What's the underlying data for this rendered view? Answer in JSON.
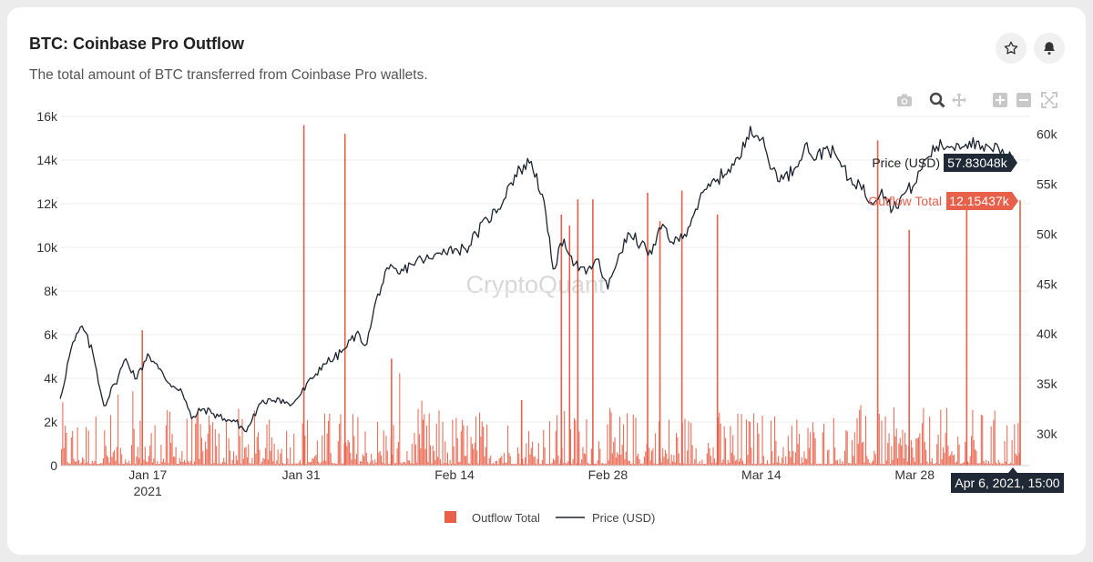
{
  "header": {
    "title": "BTC: Coinbase Pro Outflow",
    "subtitle": "The total amount of BTC transferred from Coinbase Pro wallets."
  },
  "icons": {
    "favorite": "star-icon",
    "alert": "bell-icon",
    "modebar": [
      "camera-icon",
      "zoom-icon",
      "pan-icon",
      "zoom-in-icon",
      "zoom-out-icon",
      "autoscale-icon"
    ]
  },
  "watermark": "CryptoQuant",
  "hover": {
    "price_label": "Price (USD)",
    "price_value": "57.83048k",
    "outflow_label": "Outflow Total",
    "outflow_value": "12.15437k",
    "date": "Apr 6, 2021, 15:00"
  },
  "colors": {
    "outflow": "#e8604a",
    "price": "#1c2430",
    "hover_dark": "#1f2a36",
    "hover_red": "#e8604a"
  },
  "chart_data": {
    "type": "bar",
    "x_range": [
      "2021-01-09",
      "2021-04-06"
    ],
    "x_ticks": [
      {
        "date": "2021-01-17",
        "label": "Jan 17",
        "sublabel": "2021"
      },
      {
        "date": "2021-01-31",
        "label": "Jan 31"
      },
      {
        "date": "2021-02-14",
        "label": "Feb 14"
      },
      {
        "date": "2021-02-28",
        "label": "Feb 28"
      },
      {
        "date": "2021-03-14",
        "label": "Mar 14"
      },
      {
        "date": "2021-03-28",
        "label": "Mar 28"
      }
    ],
    "y_left": {
      "range": [
        0,
        16000
      ],
      "ticks": [
        0,
        2000,
        4000,
        6000,
        8000,
        10000,
        12000,
        14000,
        16000
      ],
      "tick_labels": [
        "0",
        "2k",
        "4k",
        "6k",
        "8k",
        "10k",
        "12k",
        "14k",
        "16k"
      ]
    },
    "y_right": {
      "range": [
        26800,
        61800
      ],
      "ticks": [
        30000,
        35000,
        40000,
        45000,
        50000,
        55000,
        60000
      ],
      "tick_labels": [
        "30k",
        "35k",
        "40k",
        "45k",
        "50k",
        "55k",
        "60k"
      ]
    },
    "grid": true,
    "legend_position": "bottom",
    "series": [
      {
        "name": "Outflow Total",
        "type": "bar",
        "spikes": [
          {
            "x": "2021-01-16 12:00",
            "y": 6200
          },
          {
            "x": "2021-01-31 06:00",
            "y": 15600
          },
          {
            "x": "2021-02-04 00:00",
            "y": 15200
          },
          {
            "x": "2021-02-08 06:00",
            "y": 4900
          },
          {
            "x": "2021-02-20 03:00",
            "y": 3000
          },
          {
            "x": "2021-02-23 18:00",
            "y": 11500
          },
          {
            "x": "2021-02-24 12:00",
            "y": 11000
          },
          {
            "x": "2021-02-25 06:00",
            "y": 12200
          },
          {
            "x": "2021-02-26 15:00",
            "y": 12200
          },
          {
            "x": "2021-03-03 15:00",
            "y": 12500
          },
          {
            "x": "2021-03-04 18:00",
            "y": 11200
          },
          {
            "x": "2021-03-06 18:00",
            "y": 12600
          },
          {
            "x": "2021-03-10 00:00",
            "y": 11500
          },
          {
            "x": "2021-03-24 15:00",
            "y": 14900
          },
          {
            "x": "2021-03-27 12:00",
            "y": 10800
          },
          {
            "x": "2021-04-01 18:00",
            "y": 12100
          },
          {
            "x": "2021-04-06 15:00",
            "y": 12154
          }
        ]
      },
      {
        "name": "Price (USD)",
        "type": "line",
        "points": [
          [
            "2021-01-09",
            33500
          ],
          [
            "2021-01-10",
            38500
          ],
          [
            "2021-01-11",
            40800
          ],
          [
            "2021-01-12",
            38000
          ],
          [
            "2021-01-13",
            32800
          ],
          [
            "2021-01-14",
            35000
          ],
          [
            "2021-01-15",
            37500
          ],
          [
            "2021-01-16",
            35500
          ],
          [
            "2021-01-17",
            38000
          ],
          [
            "2021-01-18",
            36500
          ],
          [
            "2021-01-19",
            35000
          ],
          [
            "2021-01-20",
            34500
          ],
          [
            "2021-01-21",
            31500
          ],
          [
            "2021-01-22",
            32500
          ],
          [
            "2021-01-23",
            32000
          ],
          [
            "2021-01-24",
            31500
          ],
          [
            "2021-01-25",
            31200
          ],
          [
            "2021-01-26",
            30200
          ],
          [
            "2021-01-27",
            32500
          ],
          [
            "2021-01-28",
            33500
          ],
          [
            "2021-01-29",
            33500
          ],
          [
            "2021-01-30",
            32800
          ],
          [
            "2021-01-31",
            34000
          ],
          [
            "2021-02-01",
            35500
          ],
          [
            "2021-02-02",
            37000
          ],
          [
            "2021-02-03",
            37500
          ],
          [
            "2021-02-04",
            38500
          ],
          [
            "2021-02-05",
            40000
          ],
          [
            "2021-02-06",
            39000
          ],
          [
            "2021-02-07",
            44000
          ],
          [
            "2021-02-08",
            46500
          ],
          [
            "2021-02-09",
            46000
          ],
          [
            "2021-02-10",
            47000
          ],
          [
            "2021-02-11",
            47500
          ],
          [
            "2021-02-12",
            47500
          ],
          [
            "2021-02-13",
            48500
          ],
          [
            "2021-02-14",
            48500
          ],
          [
            "2021-02-15",
            48500
          ],
          [
            "2021-02-16",
            50000
          ],
          [
            "2021-02-17",
            51500
          ],
          [
            "2021-02-18",
            52500
          ],
          [
            "2021-02-19",
            55000
          ],
          [
            "2021-02-20",
            56500
          ],
          [
            "2021-02-21",
            57300
          ],
          [
            "2021-02-22",
            54000
          ],
          [
            "2021-02-23",
            46500
          ],
          [
            "2021-02-24",
            49500
          ],
          [
            "2021-02-25",
            47000
          ],
          [
            "2021-02-26",
            46000
          ],
          [
            "2021-02-27",
            47500
          ],
          [
            "2021-02-28",
            44500
          ],
          [
            "2021-03-01",
            48000
          ],
          [
            "2021-03-02",
            50000
          ],
          [
            "2021-03-03",
            49000
          ],
          [
            "2021-03-04",
            48000
          ],
          [
            "2021-03-05",
            51000
          ],
          [
            "2021-03-06",
            49000
          ],
          [
            "2021-03-07",
            50000
          ],
          [
            "2021-03-08",
            52500
          ],
          [
            "2021-03-09",
            54500
          ],
          [
            "2021-03-10",
            55500
          ],
          [
            "2021-03-11",
            56500
          ],
          [
            "2021-03-12",
            57500
          ],
          [
            "2021-03-13",
            60800
          ],
          [
            "2021-03-14",
            59500
          ],
          [
            "2021-03-15",
            56500
          ],
          [
            "2021-03-16",
            55500
          ],
          [
            "2021-03-17",
            56500
          ],
          [
            "2021-03-18",
            59000
          ],
          [
            "2021-03-19",
            57500
          ],
          [
            "2021-03-20",
            58800
          ],
          [
            "2021-03-21",
            57500
          ],
          [
            "2021-03-22",
            55500
          ],
          [
            "2021-03-23",
            55000
          ],
          [
            "2021-03-24",
            53200
          ],
          [
            "2021-03-25",
            54500
          ],
          [
            "2021-03-26",
            52500
          ],
          [
            "2021-03-27",
            54000
          ],
          [
            "2021-03-28",
            55000
          ],
          [
            "2021-03-29",
            57500
          ],
          [
            "2021-03-30",
            58800
          ],
          [
            "2021-03-31",
            58800
          ],
          [
            "2021-04-01",
            59000
          ],
          [
            "2021-04-02",
            59300
          ],
          [
            "2021-04-03",
            58500
          ],
          [
            "2021-04-04",
            58500
          ],
          [
            "2021-04-05",
            58500
          ],
          [
            "2021-04-06",
            57830
          ]
        ]
      }
    ]
  }
}
